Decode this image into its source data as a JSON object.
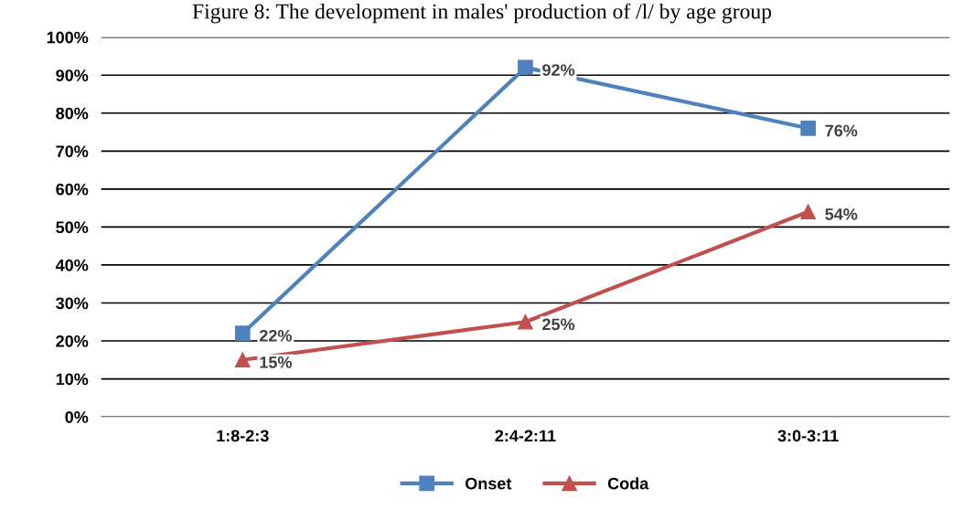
{
  "chart_data": {
    "type": "line",
    "title": "Figure 8: The development in males' production of /l/ by age group",
    "categories": [
      "1:8-2:3",
      "2:4-2:11",
      "3:0-3:11"
    ],
    "series": [
      {
        "name": "Onset",
        "color": "#4f81bd",
        "values": [
          22,
          92,
          76
        ],
        "value_labels": [
          "22%",
          "92%",
          "76%"
        ],
        "marker": "square"
      },
      {
        "name": "Coda",
        "color": "#c0504d",
        "values": [
          15,
          25,
          54
        ],
        "value_labels": [
          "15%",
          "25%",
          "54%"
        ],
        "marker": "triangle"
      }
    ],
    "ylim": [
      0,
      100
    ],
    "yticks": [
      {
        "value": 0,
        "label": "0%"
      },
      {
        "value": 10,
        "label": "10%"
      },
      {
        "value": 20,
        "label": "20%"
      },
      {
        "value": 30,
        "label": "30%"
      },
      {
        "value": 40,
        "label": "40%"
      },
      {
        "value": 50,
        "label": "50%"
      },
      {
        "value": 60,
        "label": "60%"
      },
      {
        "value": 70,
        "label": "70%"
      },
      {
        "value": 80,
        "label": "80%"
      },
      {
        "value": 90,
        "label": "90%"
      },
      {
        "value": 100,
        "label": "100%"
      }
    ],
    "grid": "y",
    "legend": "bottom"
  }
}
